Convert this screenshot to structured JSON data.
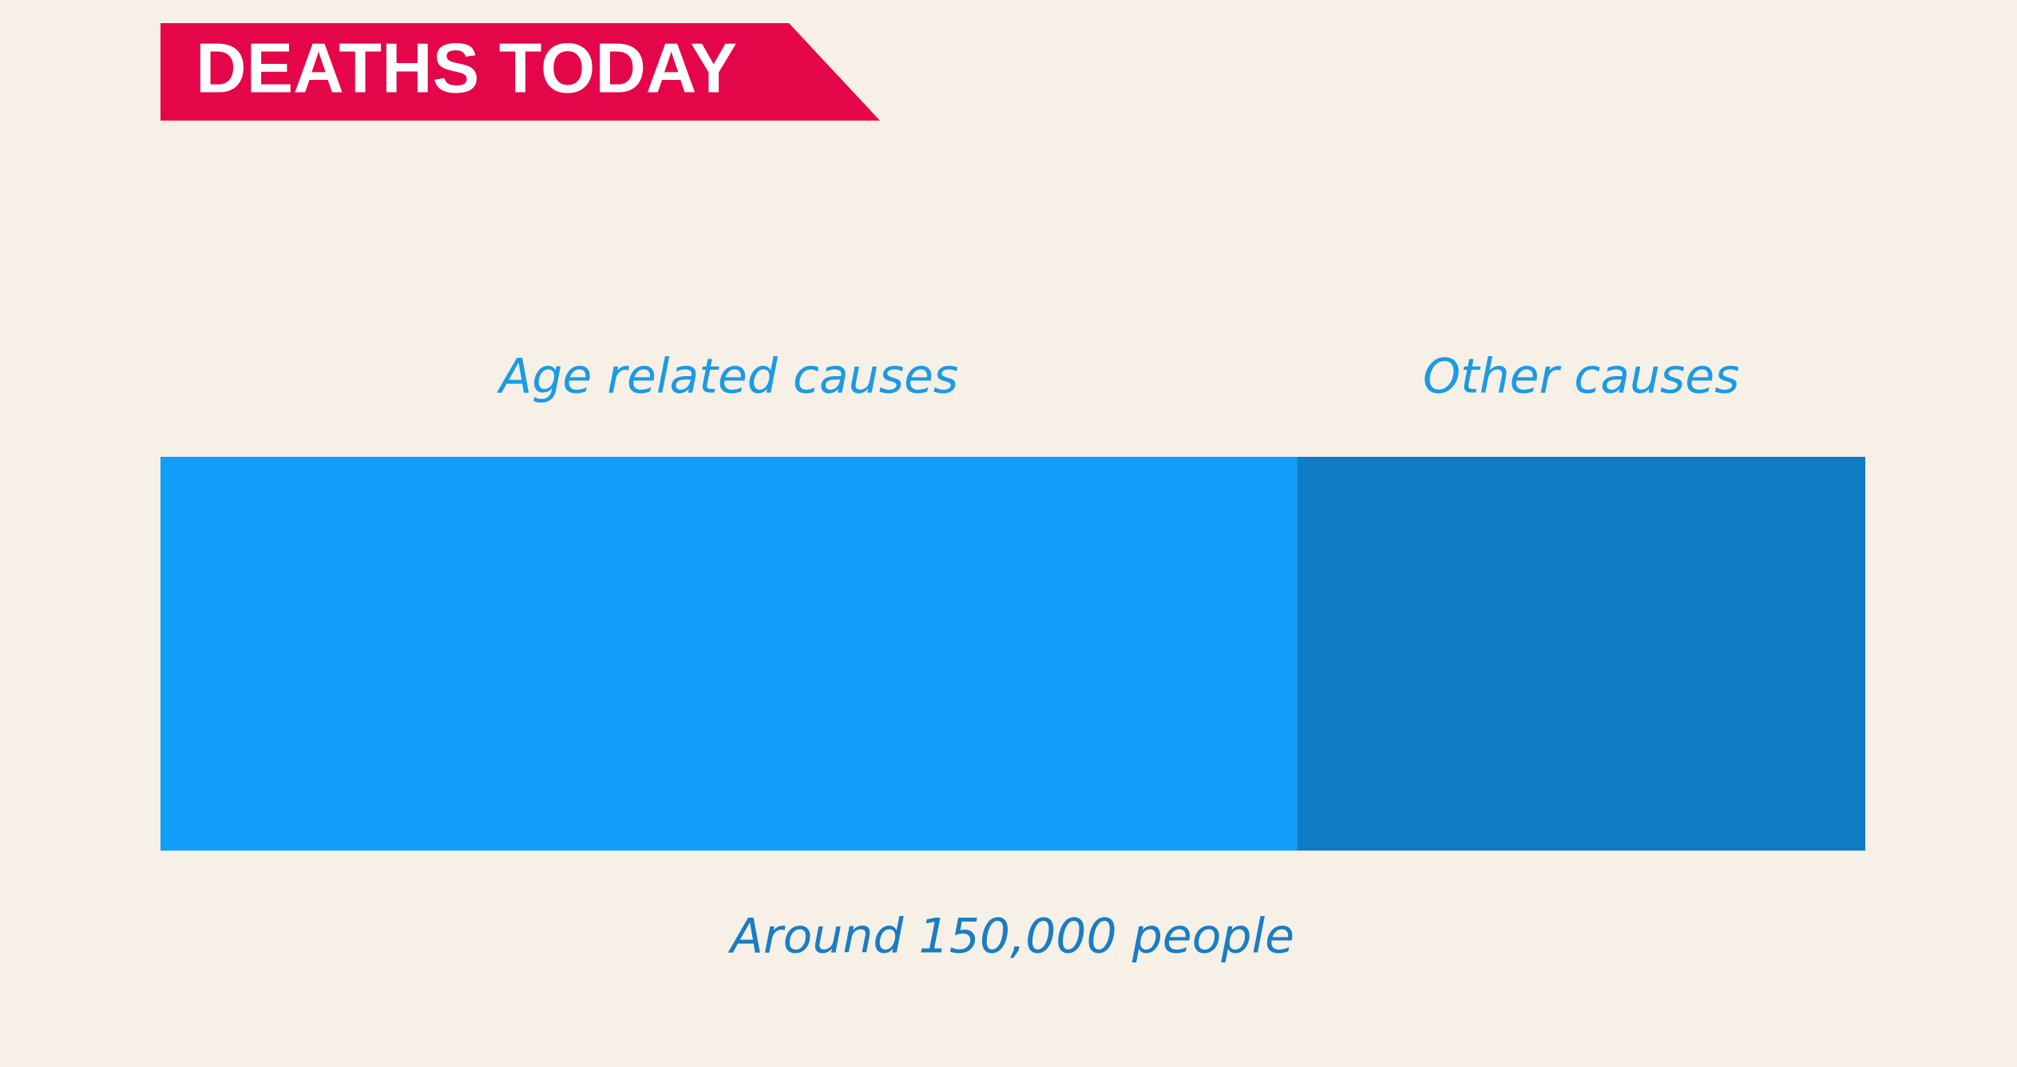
{
  "chart_data": {
    "type": "bar",
    "orientation": "horizontal",
    "stacked": true,
    "title": "DEATHS TODAY",
    "series": [
      {
        "name": "Age related causes",
        "color": "#119df8",
        "values": [
          100000
        ]
      },
      {
        "name": "Other causes",
        "color": "#0e7bc4",
        "values": [
          50000
        ]
      }
    ],
    "annotation": "Around 150,000 people"
  }
}
